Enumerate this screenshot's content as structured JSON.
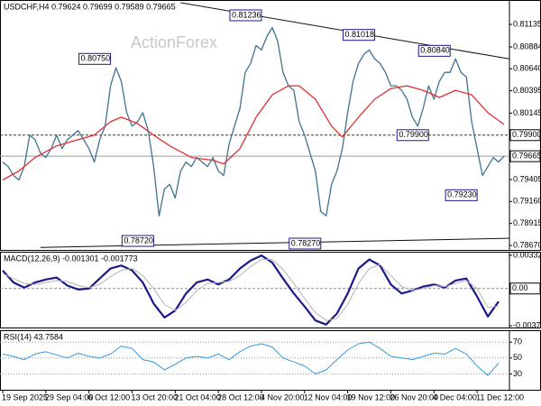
{
  "chart_data": [
    {
      "type": "line",
      "title": "USDCHF,H4  0.79624 0.79699 0.79589 0.79665",
      "watermark": "ActionForex",
      "ylim": [
        0.7862,
        0.81407
      ],
      "yticks": [
        0.81135,
        0.80884,
        {
          "value": 0.8064,
          "label": "0.80640"
        },
        0.80395,
        0.80145,
        0.79405,
        {
          "value": 0.7916,
          "label": "0.79160"
        },
        0.78915,
        {
          "value": 0.7867,
          "label": "0.78670"
        }
      ],
      "grid": false,
      "hlines": [
        {
          "value": 0.799,
          "label": "0.79900",
          "style": "dashed",
          "color": "#333333"
        },
        {
          "value": 0.79665,
          "label": "0.79665",
          "style": "solid",
          "color": "#9a9a9a"
        }
      ],
      "series": [
        {
          "color": "#3f7390",
          "values": [
            0.796,
            0.7955,
            0.7945,
            0.794,
            0.7955,
            0.799,
            0.7985,
            0.797,
            0.7965,
            0.7975,
            0.799,
            0.7975,
            0.7985,
            0.799,
            0.7995,
            0.7985,
            0.7975,
            0.796,
            0.7985,
            0.8,
            0.8045,
            0.8065,
            0.805,
            0.8015,
            0.8,
            0.8005,
            0.8015,
            0.7995,
            0.7955,
            0.79,
            0.793,
            0.7935,
            0.792,
            0.795,
            0.796,
            0.7955,
            0.7965,
            0.796,
            0.7955,
            0.7965,
            0.795,
            0.7945,
            0.798,
            0.8,
            0.802,
            0.806,
            0.807,
            0.809,
            0.8085,
            0.81,
            0.811,
            0.8095,
            0.806,
            0.8045,
            0.804,
            0.8005,
            0.799,
            0.797,
            0.795,
            0.7905,
            0.79,
            0.7935,
            0.795,
            0.7975,
            0.8015,
            0.805,
            0.807,
            0.808,
            0.8085,
            0.8075,
            0.807,
            0.806,
            0.8045,
            0.8045,
            0.804,
            0.803,
            0.801,
            0.8,
            0.802,
            0.8045,
            0.803,
            0.805,
            0.806,
            0.806,
            0.8075,
            0.806,
            0.8055,
            0.8005,
            0.7975,
            0.7945,
            0.7955,
            0.7965,
            0.796,
            0.79665
          ]
        },
        {
          "color": "#e03030",
          "x": [
            0,
            3,
            6,
            10,
            14,
            17,
            20,
            22,
            25,
            28,
            31,
            35,
            39,
            41,
            44,
            47,
            50,
            53,
            55,
            58,
            61,
            63,
            66,
            69,
            72,
            75,
            78,
            81,
            84,
            87,
            90,
            93
          ],
          "values": [
            0.794,
            0.795,
            0.7965,
            0.7978,
            0.7985,
            0.799,
            0.8005,
            0.801,
            0.8003,
            0.799,
            0.7978,
            0.7965,
            0.7962,
            0.7958,
            0.7975,
            0.801,
            0.8035,
            0.8045,
            0.8045,
            0.803,
            0.8,
            0.7988,
            0.801,
            0.803,
            0.8042,
            0.8045,
            0.804,
            0.8032,
            0.804,
            0.8035,
            0.8015,
            0.8002
          ]
        }
      ],
      "trendlines": [
        {
          "color": "#111111",
          "x": [
            33,
            94
          ],
          "values": [
            0.81377,
            0.8075
          ]
        },
        {
          "color": "#111111",
          "x": [
            7,
            94
          ],
          "values": [
            0.78648,
            0.78749
          ]
        }
      ],
      "annotations": [
        {
          "label": "0.80750",
          "x": 20,
          "value": 0.8075
        },
        {
          "label": "0.81236",
          "x": 48,
          "value": 0.81236
        },
        {
          "label": "0.81018",
          "x": 69,
          "value": 0.81018
        },
        {
          "label": "0.80840",
          "x": 83,
          "value": 0.8084
        },
        {
          "label": "0.79900",
          "x": 79,
          "value": 0.799
        },
        {
          "label": "0.79230",
          "x": 88,
          "value": 0.7923
        },
        {
          "label": "0.78720",
          "x": 28,
          "value": 0.7872
        },
        {
          "label": "0.78270",
          "x": 59,
          "value": 0.7827
        }
      ]
    },
    {
      "type": "line",
      "title": "MACD(12,26,9) -0.001301 -0.001773",
      "ylim": [
        -0.0039,
        0.00368
      ],
      "yticks": [
        0.003321,
        -0.003723
      ],
      "grid": false,
      "hlines": [
        {
          "value": 0,
          "label": "0.00",
          "style": "dashed",
          "color": "#888888"
        }
      ],
      "series": [
        {
          "color": "#1a1a8c",
          "width": 2.2,
          "x": [
            0,
            2,
            4,
            6,
            8,
            10,
            12,
            14,
            16,
            18,
            20,
            22,
            24,
            26,
            28,
            30,
            32,
            34,
            36,
            38,
            40,
            42,
            44,
            46,
            48,
            50,
            52,
            54,
            56,
            58,
            60,
            62,
            64,
            66,
            68,
            70,
            72,
            74,
            76,
            78,
            80,
            82,
            84,
            86,
            88,
            90,
            92
          ],
          "values": [
            0.0018,
            0.0006,
            0.0001,
            0.0006,
            0.0009,
            0.0011,
            0.0003,
            -0.0001,
            0,
            0.001,
            0.002,
            0.0023,
            0.0018,
            0.0006,
            -0.0015,
            -0.0029,
            -0.0022,
            -0.0005,
            0.0006,
            0.0009,
            0.0004,
            0.0009,
            0.002,
            0.0028,
            0.0033,
            0.0026,
            0.001,
            -0.0005,
            -0.0018,
            -0.0032,
            -0.0036,
            -0.0025,
            -0.0005,
            0.002,
            0.0029,
            0.0023,
            0.0004,
            -0.0005,
            -0.0002,
            0.0002,
            0.0004,
            0.0001,
            0.0008,
            0.001,
            -0.0008,
            -0.0028,
            -0.001301
          ]
        },
        {
          "color": "#b4b4b4",
          "width": 1,
          "x": [
            0,
            2,
            4,
            6,
            8,
            10,
            12,
            14,
            16,
            18,
            20,
            22,
            24,
            26,
            28,
            30,
            32,
            34,
            36,
            38,
            40,
            42,
            44,
            46,
            48,
            50,
            52,
            54,
            56,
            58,
            60,
            62,
            64,
            66,
            68,
            70,
            72,
            74,
            76,
            78,
            80,
            82,
            84,
            86,
            88,
            90,
            92
          ],
          "values": [
            0.0015,
            0.001,
            0.0005,
            0.0004,
            0.0006,
            0.0008,
            0.0007,
            0.0003,
            0.0001,
            0.0004,
            0.0012,
            0.0018,
            0.002,
            0.0013,
            0,
            -0.0016,
            -0.0022,
            -0.0014,
            -0.0002,
            0.0005,
            0.0006,
            0.0007,
            0.0013,
            0.0022,
            0.0029,
            0.0029,
            0.0019,
            0.0005,
            -0.001,
            -0.0024,
            -0.0032,
            -0.003,
            -0.0016,
            0.0005,
            0.002,
            0.0024,
            0.0013,
            0.0002,
            -0.0002,
            0,
            0.0003,
            0.0002,
            0.0005,
            0.0008,
            0,
            -0.0019,
            -0.001773
          ]
        }
      ]
    },
    {
      "type": "line",
      "title": "RSI(14) 43.7584",
      "ylim": [
        10,
        85
      ],
      "yticks": [
        70,
        50,
        30
      ],
      "grid": true,
      "series": [
        {
          "color": "#3399dd",
          "width": 1,
          "x": [
            0,
            2,
            4,
            6,
            8,
            10,
            12,
            14,
            16,
            18,
            20,
            22,
            24,
            26,
            28,
            30,
            32,
            34,
            36,
            38,
            40,
            42,
            44,
            46,
            48,
            50,
            52,
            54,
            56,
            58,
            60,
            62,
            64,
            66,
            68,
            70,
            72,
            74,
            76,
            78,
            80,
            82,
            84,
            86,
            88,
            90,
            92
          ],
          "values": [
            55,
            52,
            48,
            55,
            58,
            54,
            50,
            56,
            52,
            50,
            55,
            65,
            62,
            48,
            45,
            35,
            42,
            50,
            52,
            50,
            55,
            48,
            58,
            65,
            68,
            64,
            50,
            45,
            40,
            30,
            35,
            48,
            60,
            68,
            70,
            62,
            52,
            50,
            48,
            52,
            56,
            55,
            62,
            55,
            40,
            28,
            43.7584
          ]
        }
      ],
      "xlim": [
        0,
        94
      ],
      "xticks": [
        {
          "value": 0,
          "label": "19 Sep 2025"
        },
        {
          "value": 8,
          "label": "29 Sep 04:00"
        },
        {
          "value": 16,
          "label": "6 Oct 12:00"
        },
        {
          "value": 24,
          "label": "13 Oct 20:00"
        },
        {
          "value": 32,
          "label": "21 Oct 04:00"
        },
        {
          "value": 40,
          "label": "28 Oct 12:00"
        },
        {
          "value": 48,
          "label": "4 Nov 20:00"
        },
        {
          "value": 56,
          "label": "12 Nov 04:00"
        },
        {
          "value": 64,
          "label": "19 Nov 12:00"
        },
        {
          "value": 72,
          "label": "26 Nov 20:00"
        },
        {
          "value": 80,
          "label": "4 Dec 04:00"
        },
        {
          "value": 88,
          "label": "11 Dec 12:00"
        }
      ]
    }
  ]
}
